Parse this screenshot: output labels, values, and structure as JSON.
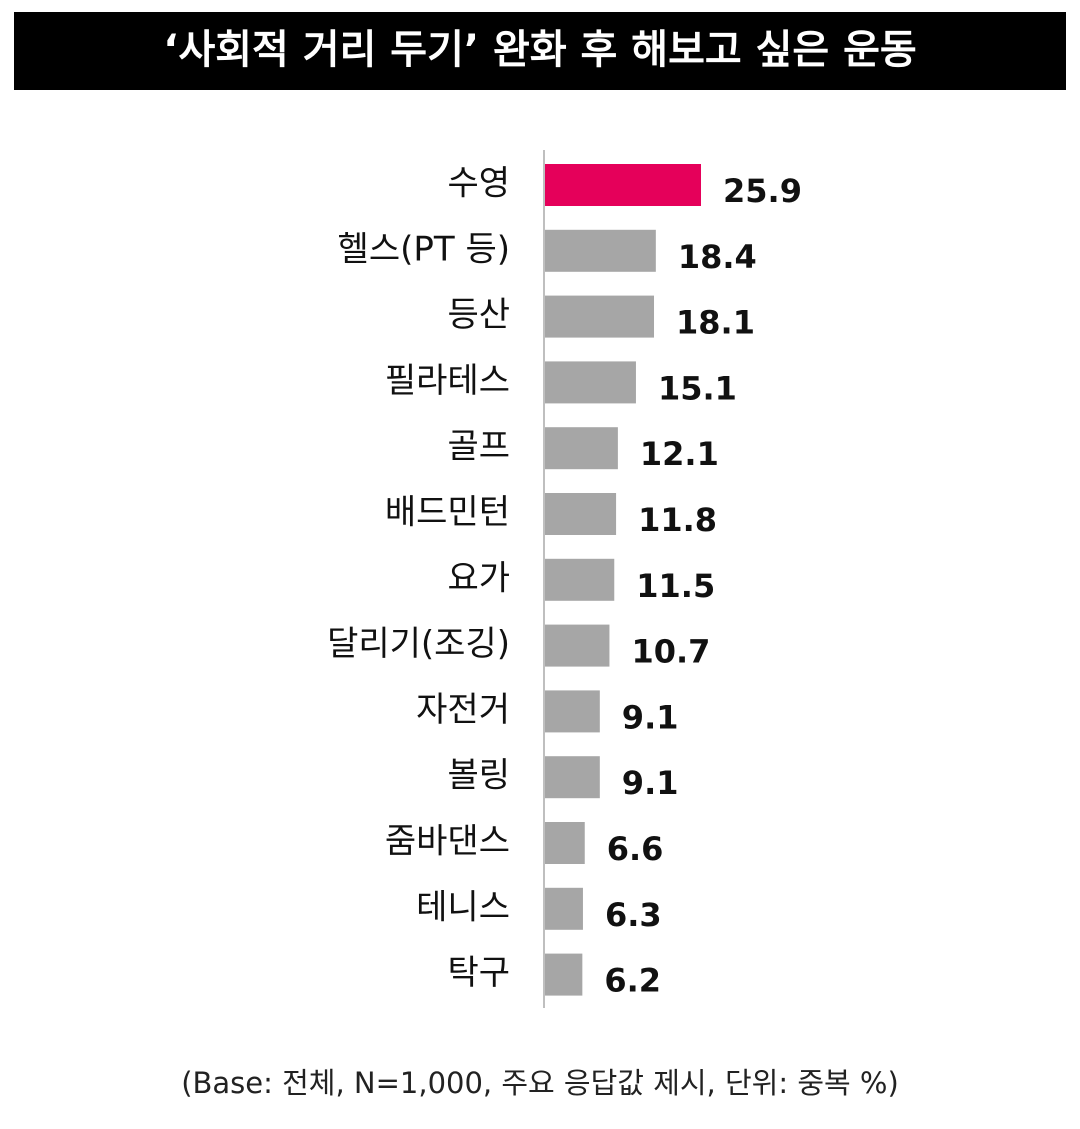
{
  "chart_data": {
    "type": "bar",
    "orientation": "horizontal",
    "title": "‘사회적 거리 두기’ 완화 후 해보고 싶은 운동",
    "categories": [
      "수영",
      "헬스(PT 등)",
      "등산",
      "필라테스",
      "골프",
      "배드민턴",
      "요가",
      "달리기(조깅)",
      "자전거",
      "볼링",
      "줌바댄스",
      "테니스",
      "탁구"
    ],
    "values": [
      25.9,
      18.4,
      18.1,
      15.1,
      12.1,
      11.8,
      11.5,
      10.7,
      9.1,
      9.1,
      6.6,
      6.3,
      6.2
    ],
    "colors": [
      "#e5005a",
      "#a6a6a6",
      "#a6a6a6",
      "#a6a6a6",
      "#a6a6a6",
      "#a6a6a6",
      "#a6a6a6",
      "#a6a6a6",
      "#a6a6a6",
      "#a6a6a6",
      "#a6a6a6",
      "#a6a6a6",
      "#a6a6a6"
    ],
    "note": "(Base: 전체, N=1,000, 주요 응답값 제시, 단위: 중복 %)"
  }
}
